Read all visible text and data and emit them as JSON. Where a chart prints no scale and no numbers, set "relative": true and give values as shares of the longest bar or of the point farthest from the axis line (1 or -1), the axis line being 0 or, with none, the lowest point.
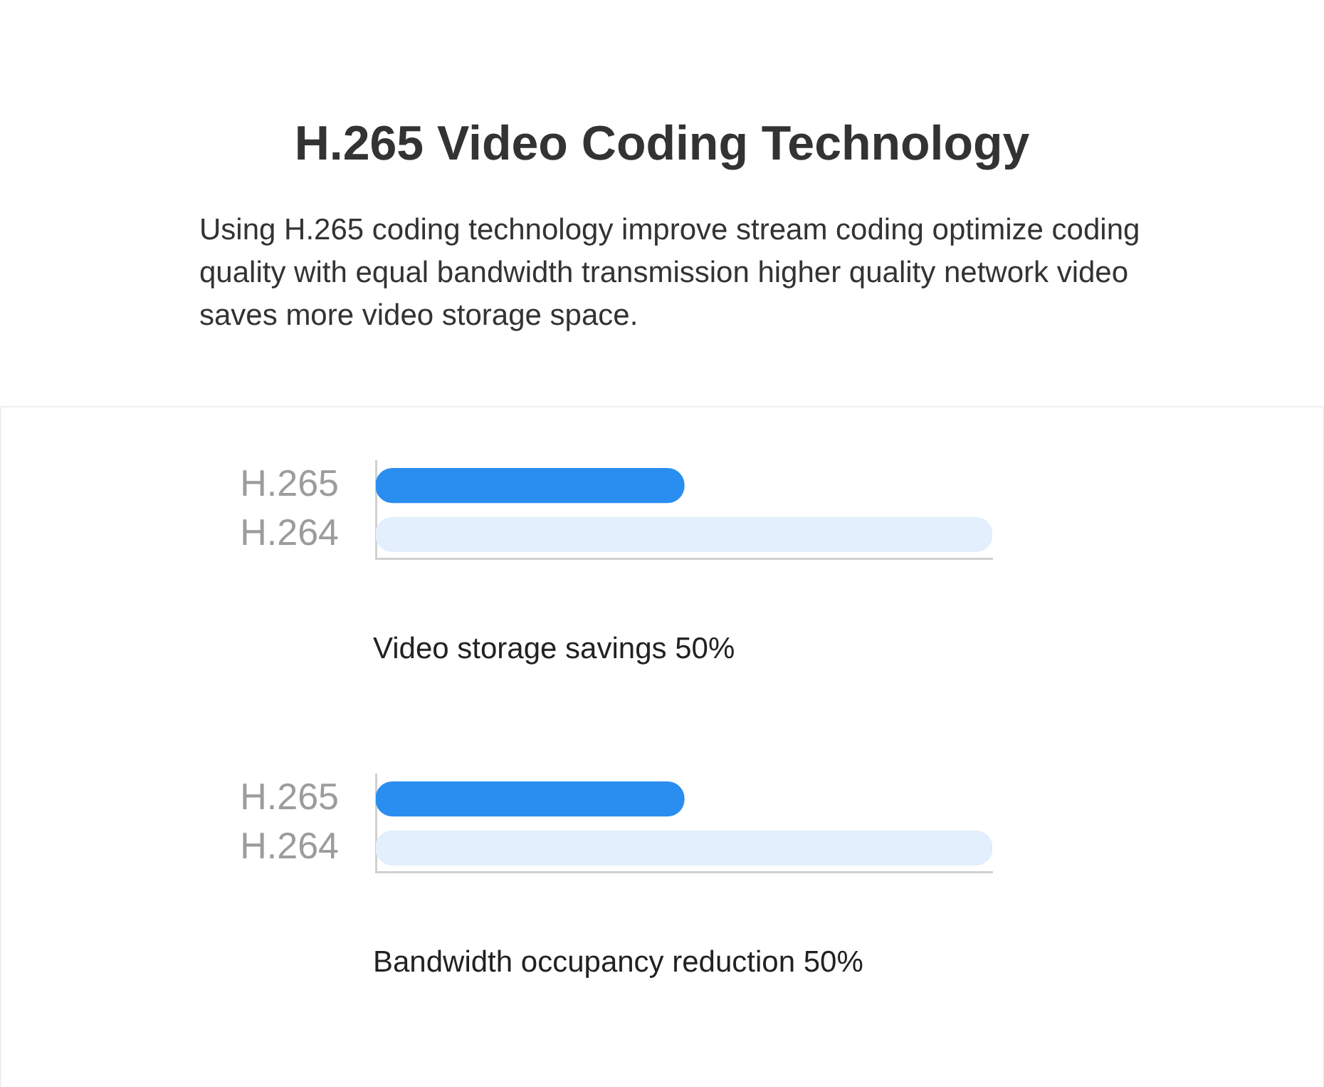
{
  "chart_data": [
    {
      "type": "bar",
      "title": "H.265 Video Coding Technology",
      "subtitle": "Using H.265 coding technology improve stream coding optimize coding quality with equal bandwidth transmission higher quality network video saves more video storage space.",
      "xlabel": "Video storage savings 50%",
      "orientation": "horizontal",
      "relative": true,
      "categories": [
        "H.265",
        "H.264"
      ],
      "values": [
        0.5,
        1
      ],
      "colors": [
        "#2a8ef0",
        "#e3effc"
      ]
    },
    {
      "type": "bar",
      "xlabel": "Bandwidth occupancy reduction 50%",
      "orientation": "horizontal",
      "relative": true,
      "categories": [
        "H.265",
        "H.264"
      ],
      "values": [
        0.5,
        1
      ],
      "colors": [
        "#2a8ef0",
        "#e3effc"
      ]
    }
  ]
}
